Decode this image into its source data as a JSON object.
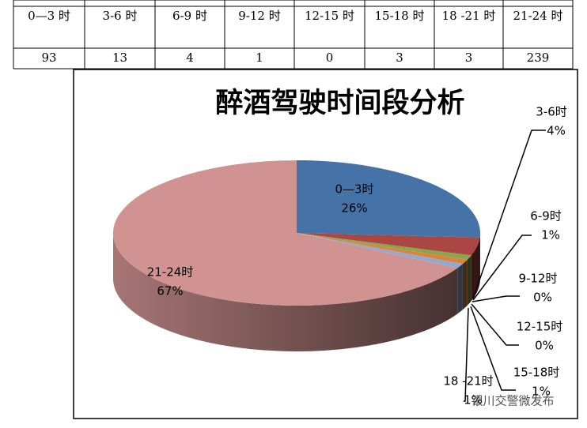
{
  "table": {
    "header": [
      "0—3 时",
      "3-6 时",
      "6-9 时",
      "9-12 时",
      "12-15 时",
      "15-18 时",
      "18 -21 时",
      "21-24 时"
    ],
    "rows": [
      [
        93,
        13,
        4,
        1,
        0,
        3,
        3,
        239
      ]
    ]
  },
  "chart_data": {
    "type": "pie3d",
    "title": "醉酒驾驶时间段分析",
    "categories": [
      "0—3时",
      "3-6时",
      "6-9时",
      "9-12时",
      "12-15时",
      "15-18时",
      "18 -21时",
      "21-24时"
    ],
    "values": [
      26,
      4,
      1,
      0,
      0,
      1,
      1,
      67
    ],
    "value_labels": [
      "26%",
      "4%",
      "1%",
      "0%",
      "0%",
      "1%",
      "1%",
      "67%"
    ],
    "colors": [
      "#4572a7",
      "#aa4643",
      "#89a54e",
      "#71588f",
      "#4198af",
      "#db843d",
      "#93a9cf",
      "#d19392"
    ]
  },
  "watermark": "银川交警微发布"
}
